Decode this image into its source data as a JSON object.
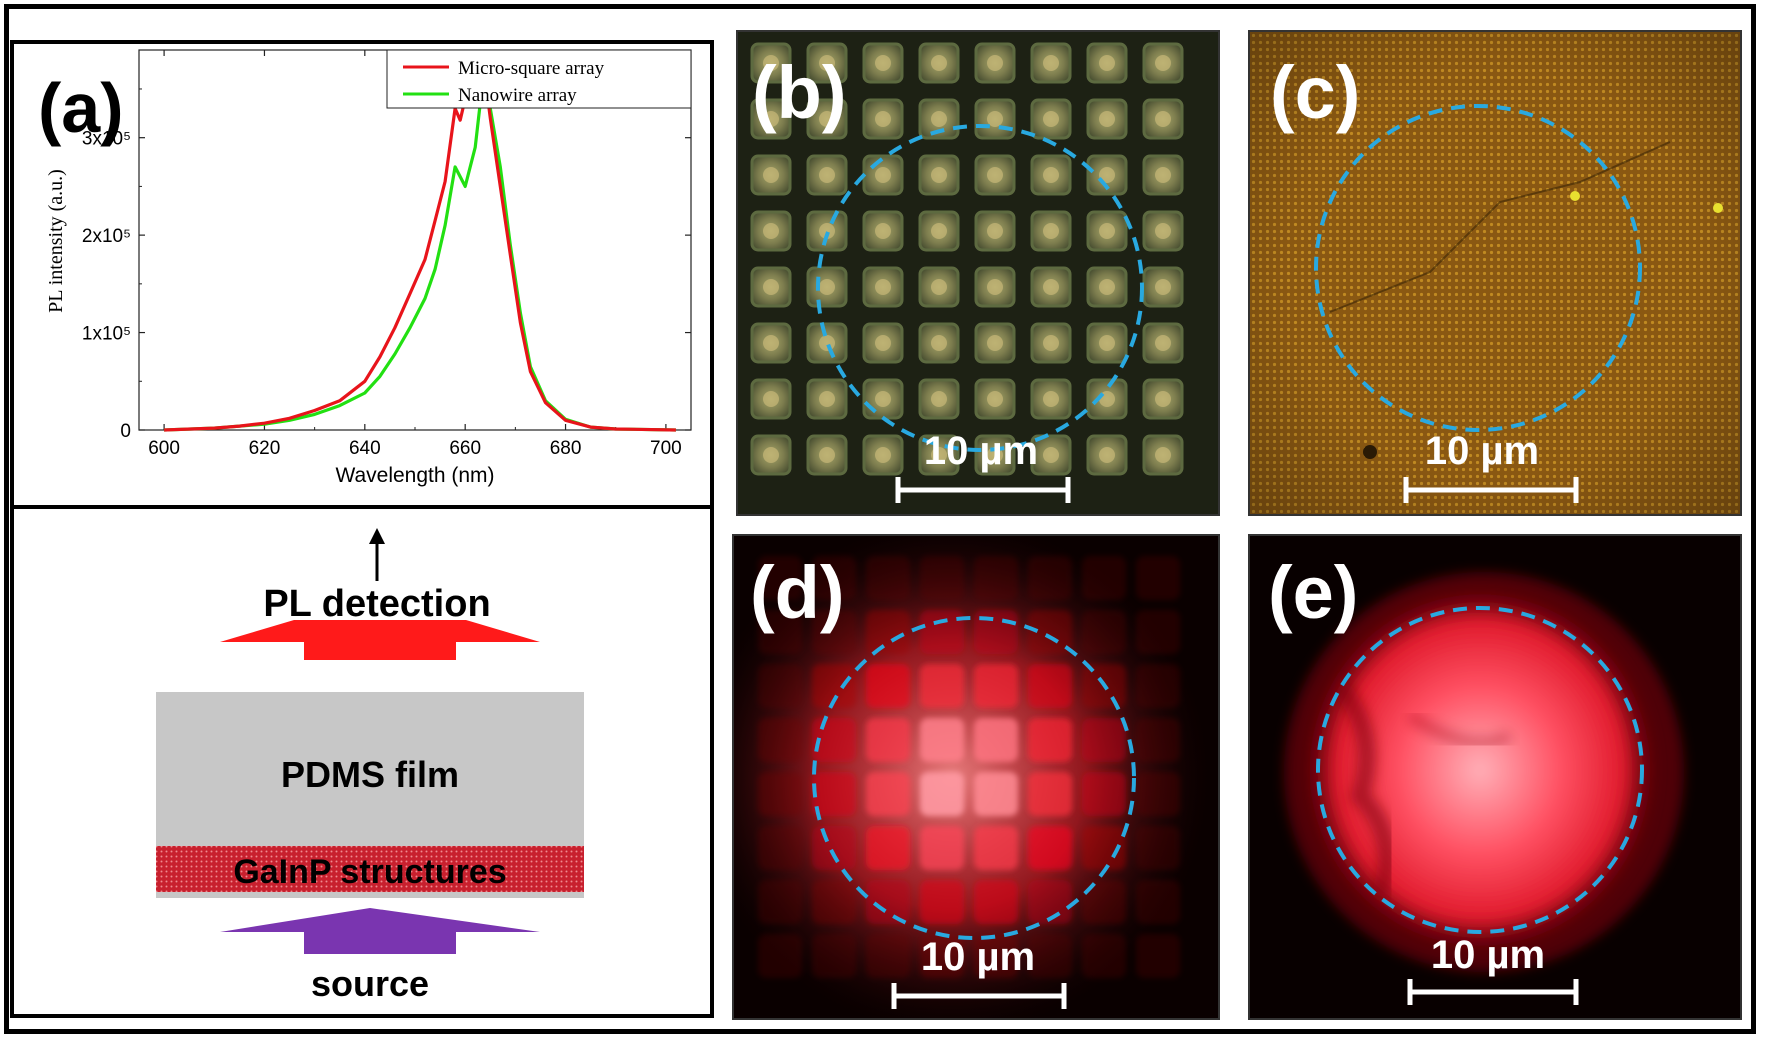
{
  "panel_a": {
    "label": "(a)",
    "schematic": {
      "pl_detection": "PL detection",
      "pdms_film": "PDMS film",
      "gainp_structures": "GaInP structures",
      "source": "source"
    }
  },
  "chart_data": {
    "type": "line",
    "xlabel": "Wavelength (nm)",
    "ylabel": "PL intensity (a.u.)",
    "xlim": [
      595,
      705
    ],
    "ylim": [
      0,
      390000
    ],
    "x_ticks": [
      600,
      620,
      640,
      660,
      680,
      700
    ],
    "y_ticks": [
      {
        "value": 0,
        "label": "0"
      },
      {
        "value": 100000,
        "label": "1x10⁵"
      },
      {
        "value": 200000,
        "label": "2x10⁵"
      },
      {
        "value": 300000,
        "label": "3x10⁵"
      }
    ],
    "legend_position": "top-right",
    "series": [
      {
        "name": "Micro-square array",
        "color": "#e8141b",
        "points": [
          [
            600,
            0
          ],
          [
            610,
            2000
          ],
          [
            615,
            4000
          ],
          [
            620,
            7000
          ],
          [
            625,
            12000
          ],
          [
            630,
            20000
          ],
          [
            635,
            30000
          ],
          [
            640,
            50000
          ],
          [
            643,
            75000
          ],
          [
            646,
            105000
          ],
          [
            649,
            140000
          ],
          [
            652,
            175000
          ],
          [
            654,
            215000
          ],
          [
            656,
            255000
          ],
          [
            658,
            330000
          ],
          [
            659,
            318000
          ],
          [
            660,
            340000
          ],
          [
            661,
            380000
          ],
          [
            662,
            355000
          ],
          [
            663,
            385000
          ],
          [
            664,
            360000
          ],
          [
            665,
            320000
          ],
          [
            667,
            250000
          ],
          [
            669,
            180000
          ],
          [
            671,
            110000
          ],
          [
            673,
            60000
          ],
          [
            676,
            28000
          ],
          [
            680,
            10000
          ],
          [
            685,
            3000
          ],
          [
            690,
            1000
          ],
          [
            702,
            0
          ]
        ]
      },
      {
        "name": "Nanowire array",
        "color": "#22e012",
        "points": [
          [
            600,
            0
          ],
          [
            610,
            2000
          ],
          [
            615,
            4000
          ],
          [
            620,
            6000
          ],
          [
            625,
            10000
          ],
          [
            630,
            16000
          ],
          [
            635,
            25000
          ],
          [
            640,
            38000
          ],
          [
            643,
            55000
          ],
          [
            646,
            78000
          ],
          [
            649,
            105000
          ],
          [
            652,
            135000
          ],
          [
            654,
            165000
          ],
          [
            656,
            210000
          ],
          [
            658,
            270000
          ],
          [
            660,
            250000
          ],
          [
            662,
            290000
          ],
          [
            663,
            335000
          ],
          [
            664,
            340000
          ],
          [
            665,
            330000
          ],
          [
            667,
            270000
          ],
          [
            669,
            190000
          ],
          [
            671,
            120000
          ],
          [
            673,
            65000
          ],
          [
            676,
            30000
          ],
          [
            680,
            11000
          ],
          [
            685,
            3000
          ],
          [
            690,
            1000
          ],
          [
            702,
            0
          ]
        ]
      }
    ]
  },
  "panels": [
    {
      "label": "(b)",
      "scale_bar": "10 µm"
    },
    {
      "label": "(c)",
      "scale_bar": "10 µm"
    },
    {
      "label": "(d)",
      "scale_bar": "10 µm"
    },
    {
      "label": "(e)",
      "scale_bar": "10 µm"
    }
  ],
  "colors": {
    "dashed_circle": "#29a9e0",
    "detection_arrow": "#ff1a1a",
    "source_arrow": "#7a35b0",
    "pdms_film": "#c7c7c7",
    "gainp_layer": "#cc2a36"
  }
}
